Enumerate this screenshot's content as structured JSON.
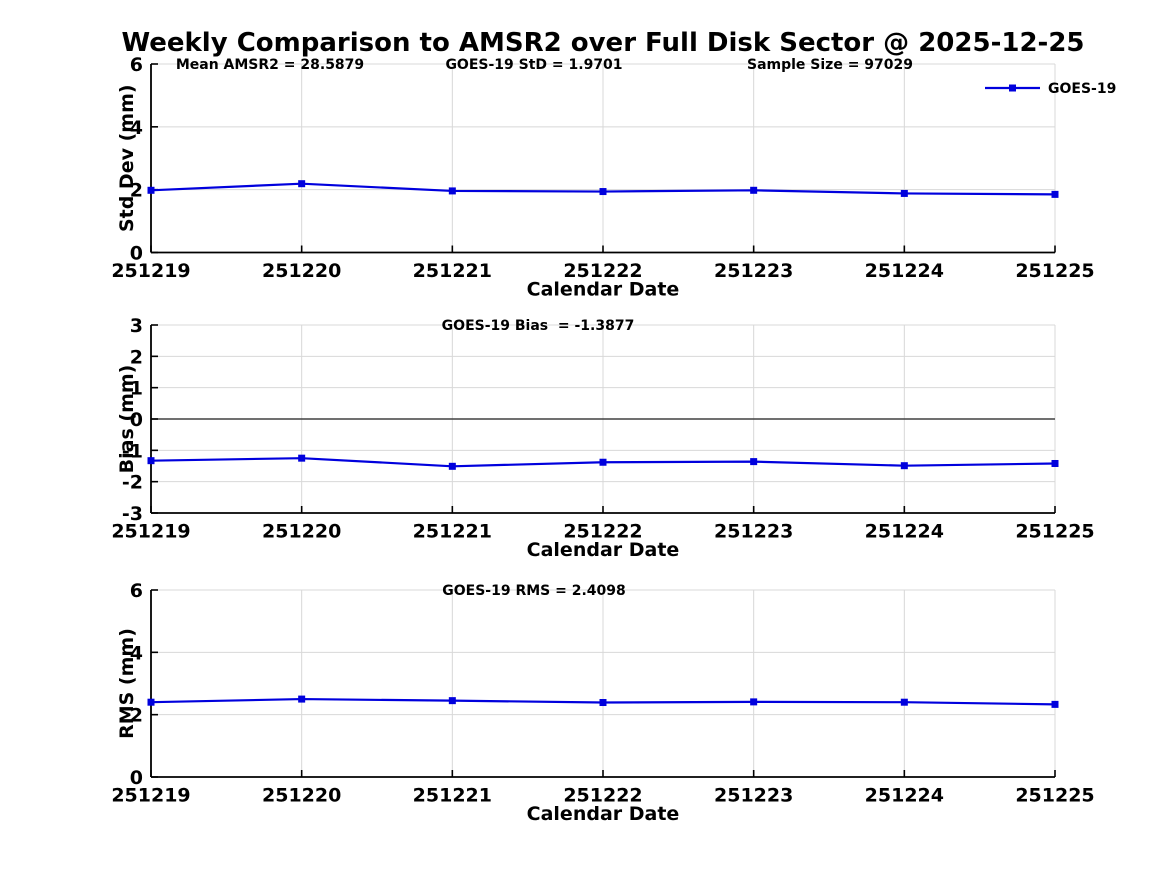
{
  "title": "Weekly Comparison to AMSR2 over Full Disk Sector @ 2025-12-25",
  "colors": {
    "series": "#0000dd",
    "grid": "#d8d8d8",
    "zero_line": "#404040",
    "axis": "#000000",
    "text": "#000000"
  },
  "chart_data": [
    {
      "type": "line",
      "name": "std-dev",
      "categories": [
        "251219",
        "251220",
        "251221",
        "251222",
        "251223",
        "251224",
        "251225"
      ],
      "series": [
        {
          "name": "GOES-19",
          "values": [
            1.98,
            2.19,
            1.96,
            1.94,
            1.98,
            1.88,
            1.85
          ]
        }
      ],
      "xlabel": "Calendar Date",
      "ylabel": "Std Dev (mm)",
      "ylim": [
        0,
        6
      ],
      "yticks": [
        0,
        2,
        4,
        6
      ],
      "grid": true,
      "zero_line": false,
      "annotations": [
        "Mean AMSR2 = 28.5879",
        "GOES-19 StD = 1.9701",
        "Sample Size = 97029"
      ],
      "legend": {
        "label": "GOES-19",
        "position": "top-right"
      }
    },
    {
      "type": "line",
      "name": "bias",
      "categories": [
        "251219",
        "251220",
        "251221",
        "251222",
        "251223",
        "251224",
        "251225"
      ],
      "series": [
        {
          "name": "GOES-19",
          "values": [
            -1.33,
            -1.25,
            -1.51,
            -1.38,
            -1.36,
            -1.49,
            -1.42
          ]
        }
      ],
      "xlabel": "Calendar Date",
      "ylabel": "Bias (mm)",
      "ylim": [
        -3,
        3
      ],
      "yticks": [
        -3,
        -2,
        -1,
        0,
        1,
        2,
        3
      ],
      "grid": true,
      "zero_line": true,
      "annotations": [
        "GOES-19 Bias  = -1.3877"
      ],
      "legend": null
    },
    {
      "type": "line",
      "name": "rms",
      "categories": [
        "251219",
        "251220",
        "251221",
        "251222",
        "251223",
        "251224",
        "251225"
      ],
      "series": [
        {
          "name": "GOES-19",
          "values": [
            2.4,
            2.5,
            2.45,
            2.39,
            2.41,
            2.4,
            2.33
          ]
        }
      ],
      "xlabel": "Calendar Date",
      "ylabel": "RMS (mm)",
      "ylim": [
        0,
        6
      ],
      "yticks": [
        0,
        2,
        4,
        6
      ],
      "grid": true,
      "zero_line": false,
      "annotations": [
        "GOES-19 RMS = 2.4098"
      ],
      "legend": null
    }
  ]
}
